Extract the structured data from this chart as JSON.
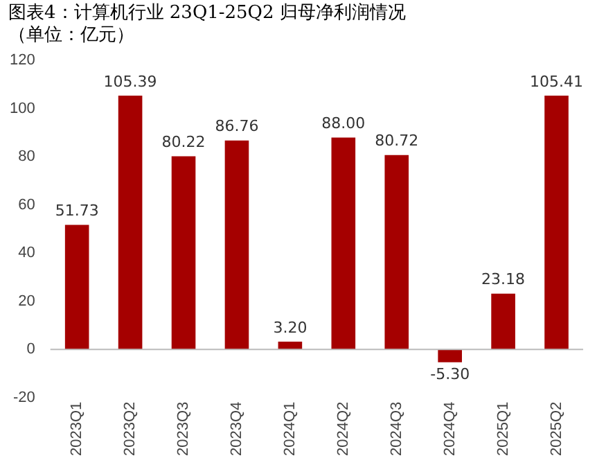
{
  "chart_data": {
    "type": "bar",
    "title": "图表4：计算机行业 23Q1-25Q2 归母净利润情况",
    "subtitle": "（单位：亿元）",
    "categories": [
      "2023Q1",
      "2023Q2",
      "2023Q3",
      "2023Q4",
      "2024Q1",
      "2024Q2",
      "2024Q3",
      "2024Q4",
      "2025Q1",
      "2025Q2"
    ],
    "values": [
      51.73,
      105.39,
      80.22,
      86.76,
      3.2,
      88.0,
      80.72,
      -5.3,
      23.18,
      105.41
    ],
    "value_labels": [
      "51.73",
      "105.39",
      "80.22",
      "86.76",
      "3.20",
      "88.00",
      "80.72",
      "-5.30",
      "23.18",
      "105.41"
    ],
    "color": "#a50000",
    "ylim": [
      -20,
      120
    ],
    "yticks": [
      -20,
      0,
      20,
      40,
      60,
      80,
      100,
      120
    ],
    "grid": false,
    "ref_lines": [
      {
        "axis": "y",
        "value": 0,
        "color": "#bbbbbb"
      }
    ]
  }
}
